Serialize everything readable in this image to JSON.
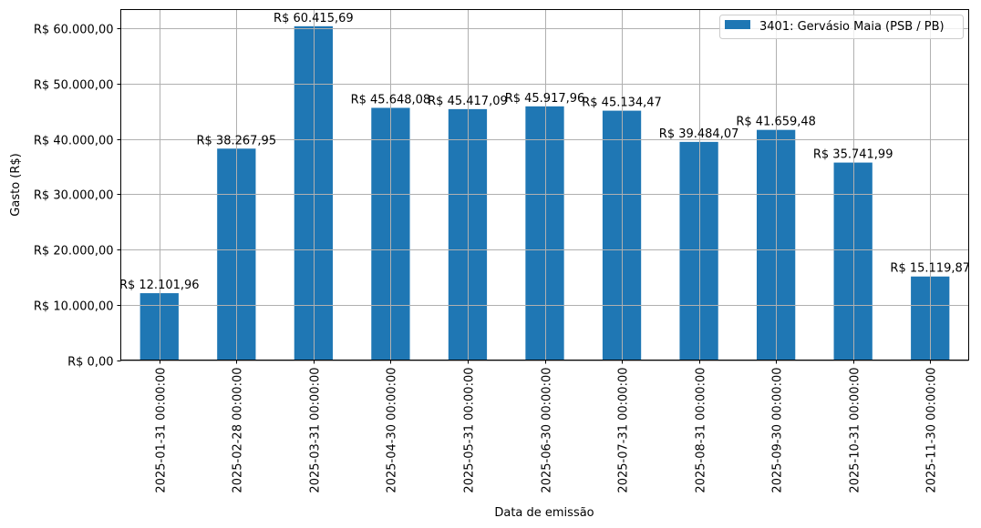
{
  "chart_data": {
    "type": "bar",
    "title": "",
    "xlabel": "Data de emissão",
    "ylabel": "Gasto (R$)",
    "ylim": [
      0,
      63437.47
    ],
    "grid": true,
    "legend_position": "upper right",
    "categories": [
      "2025-01-31 00:00:00",
      "2025-02-28 00:00:00",
      "2025-03-31 00:00:00",
      "2025-04-30 00:00:00",
      "2025-05-31 00:00:00",
      "2025-06-30 00:00:00",
      "2025-07-31 00:00:00",
      "2025-08-31 00:00:00",
      "2025-09-30 00:00:00",
      "2025-10-31 00:00:00",
      "2025-11-30 00:00:00"
    ],
    "series": [
      {
        "name": "3401: Gervásio Maia (PSB / PB)",
        "color": "#1f77b4",
        "values": [
          12101.96,
          38267.95,
          60415.69,
          45648.08,
          45417.09,
          45917.96,
          45134.47,
          39484.07,
          41659.48,
          35741.99,
          15119.87
        ],
        "labels": [
          "R$ 12.101,96",
          "R$ 38.267,95",
          "R$ 60.415,69",
          "R$ 45.648,08",
          "R$ 45.417,09",
          "R$ 45.917,96",
          "R$ 45.134,47",
          "R$ 39.484,07",
          "R$ 41.659,48",
          "R$ 35.741,99",
          "R$ 15.119,87"
        ]
      }
    ],
    "y_ticks": [
      {
        "value": 0,
        "label": "R$ 0,00"
      },
      {
        "value": 10000,
        "label": "R$ 10.000,00"
      },
      {
        "value": 20000,
        "label": "R$ 20.000,00"
      },
      {
        "value": 30000,
        "label": "R$ 30.000,00"
      },
      {
        "value": 40000,
        "label": "R$ 40.000,00"
      },
      {
        "value": 50000,
        "label": "R$ 50.000,00"
      },
      {
        "value": 60000,
        "label": "R$ 60.000,00"
      }
    ]
  },
  "colors": {
    "bar": "#1f77b4",
    "grid": "#b0b0b0",
    "axis": "#000000"
  }
}
